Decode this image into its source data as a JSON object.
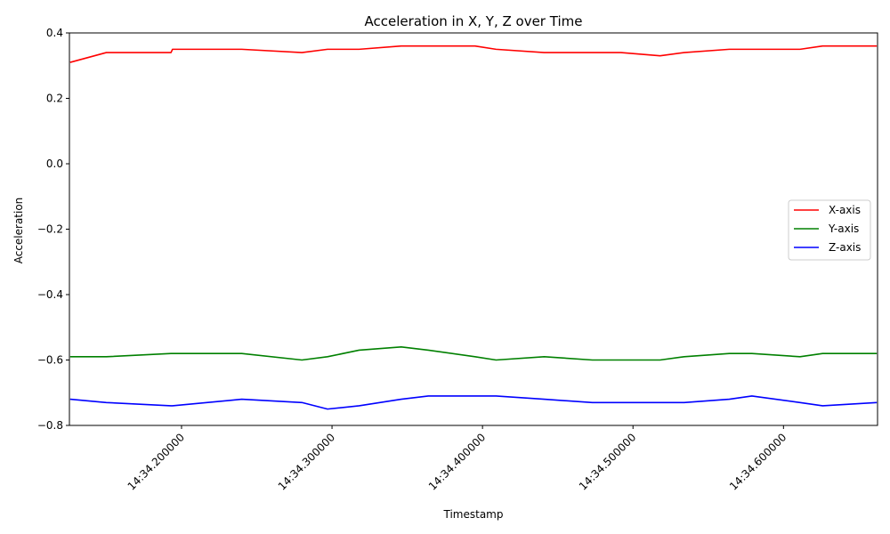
{
  "chart_data": {
    "type": "line",
    "title": "Acceleration in X, Y, Z over Time",
    "xlabel": "Timestamp",
    "ylabel": "Acceleration",
    "ylim": [
      -0.8,
      0.4
    ],
    "xlim": [
      "14:34.125500",
      "14:34.662500"
    ],
    "yticks": [
      0.4,
      0.2,
      0.0,
      -0.2,
      -0.4,
      -0.6,
      -0.8
    ],
    "ytick_labels": [
      "0.4",
      "0.2",
      "0.0",
      "−0.2",
      "−0.4",
      "−0.6",
      "−0.8"
    ],
    "xticks": [
      "14:34.200000",
      "14:34.300000",
      "14:34.400000",
      "14:34.500000",
      "14:34.600000"
    ],
    "xtick_labels": [
      "14:34.200000",
      "14:34.300000",
      "14:34.400000",
      "14:34.500000",
      "14:34.600000"
    ],
    "grid": false,
    "legend_position": "center-right",
    "x": [
      "14:34.126000",
      "14:34.150000",
      "14:34.193000",
      "14:34.194000",
      "14:34.240000",
      "14:34.280000",
      "14:34.297000",
      "14:34.318000",
      "14:34.346000",
      "14:34.364000",
      "14:34.395000",
      "14:34.409000",
      "14:34.441000",
      "14:34.473000",
      "14:34.492000",
      "14:34.518000",
      "14:34.534000",
      "14:34.564000",
      "14:34.579000",
      "14:34.611000",
      "14:34.626000",
      "14:34.662000"
    ],
    "series": [
      {
        "name": "X-axis",
        "color": "#ff0000",
        "values": [
          0.31,
          0.34,
          0.34,
          0.35,
          0.35,
          0.34,
          0.35,
          0.35,
          0.36,
          0.36,
          0.36,
          0.35,
          0.34,
          0.34,
          0.34,
          0.33,
          0.34,
          0.35,
          0.35,
          0.35,
          0.36,
          0.36
        ]
      },
      {
        "name": "Y-axis",
        "color": "#008000",
        "values": [
          -0.59,
          -0.59,
          -0.58,
          -0.58,
          -0.58,
          -0.6,
          -0.59,
          -0.57,
          -0.56,
          -0.57,
          -0.59,
          -0.6,
          -0.59,
          -0.6,
          -0.6,
          -0.6,
          -0.59,
          -0.58,
          -0.58,
          -0.59,
          -0.58,
          -0.58
        ]
      },
      {
        "name": "Z-axis",
        "color": "#0000ff",
        "values": [
          -0.72,
          -0.73,
          -0.74,
          -0.74,
          -0.72,
          -0.73,
          -0.75,
          -0.74,
          -0.72,
          -0.71,
          -0.71,
          -0.71,
          -0.72,
          -0.73,
          -0.73,
          -0.73,
          -0.73,
          -0.72,
          -0.71,
          -0.73,
          -0.74,
          -0.73
        ]
      }
    ]
  }
}
